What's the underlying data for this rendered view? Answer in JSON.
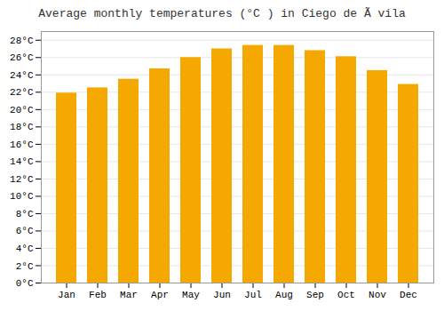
{
  "chart_data": {
    "type": "bar",
    "title": "Average monthly temperatures (°C ) in Ciego de Ã vila",
    "categories": [
      "Jan",
      "Feb",
      "Mar",
      "Apr",
      "May",
      "Jun",
      "Jul",
      "Aug",
      "Sep",
      "Oct",
      "Nov",
      "Dec"
    ],
    "values": [
      21.9,
      22.5,
      23.5,
      24.7,
      26.0,
      27.0,
      27.4,
      27.4,
      26.8,
      26.1,
      24.5,
      22.9
    ],
    "color": "#F5A800",
    "ylim": [
      0,
      29
    ],
    "yticks": [
      {
        "value": 0,
        "label": "0°C"
      },
      {
        "value": 2,
        "label": "2°C"
      },
      {
        "value": 4,
        "label": "4°C"
      },
      {
        "value": 6,
        "label": "6°C"
      },
      {
        "value": 8,
        "label": "8°C"
      },
      {
        "value": 10,
        "label": "10°C"
      },
      {
        "value": 12,
        "label": "12°C"
      },
      {
        "value": 14,
        "label": "14°C"
      },
      {
        "value": 16,
        "label": "16°C"
      },
      {
        "value": 18,
        "label": "18°C"
      },
      {
        "value": 20,
        "label": "20°C"
      },
      {
        "value": 22,
        "label": "22°C"
      },
      {
        "value": 24,
        "label": "24°C"
      },
      {
        "value": 26,
        "label": "26°C"
      },
      {
        "value": 28,
        "label": "28°C"
      }
    ],
    "grid": true
  }
}
